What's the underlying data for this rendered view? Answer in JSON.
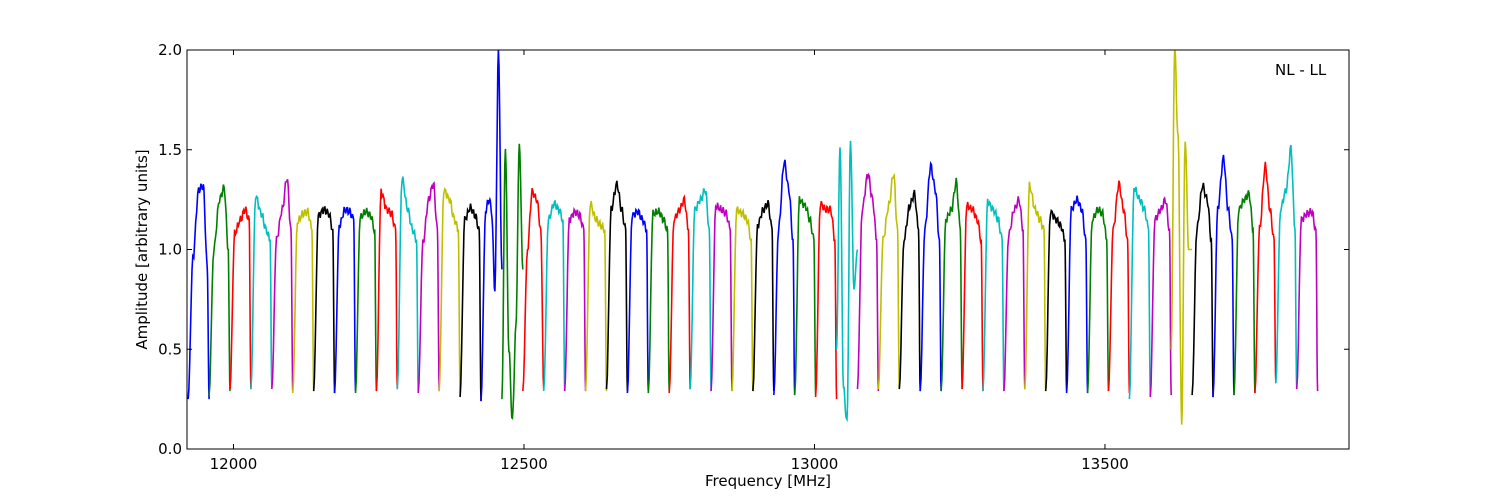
{
  "chart_data": {
    "type": "line",
    "title": "",
    "annotation": "NL - LL",
    "xlabel": "Frequency [MHz]",
    "ylabel": "Amplitude [arbitrary units]",
    "xlim": [
      11920,
      13920
    ],
    "ylim": [
      0.0,
      2.0
    ],
    "xticks": [
      12000,
      12500,
      13000,
      13500
    ],
    "xtick_labels": [
      "12000",
      "12500",
      "13000",
      "13500"
    ],
    "yticks": [
      0.0,
      0.5,
      1.0,
      1.5,
      2.0
    ],
    "ytick_labels": [
      "0.0",
      "0.5",
      "1.0",
      "1.5",
      "2.0"
    ],
    "grid": false,
    "legend": "none",
    "channel_width_mhz": 36,
    "color_cycle": [
      "#0000ff",
      "#008000",
      "#ff0000",
      "#00bfbf",
      "#bf00bf",
      "#bfbf00",
      "#000000"
    ],
    "series": [
      {
        "x": [
          11922,
          11930,
          11940,
          11948,
          11955,
          11958
        ],
        "y": [
          0.25,
          0.95,
          1.3,
          1.32,
          0.9,
          0.25
        ],
        "color": "#0000ff"
      },
      {
        "x": [
          11958,
          11966,
          11976,
          11984,
          11991,
          11994
        ],
        "y": [
          0.27,
          1.0,
          1.25,
          1.31,
          1.0,
          0.29
        ],
        "color": "#008000"
      },
      {
        "x": [
          11994,
          12002,
          12012,
          12020,
          12027,
          12030
        ],
        "y": [
          0.3,
          1.08,
          1.15,
          1.2,
          1.15,
          0.3
        ],
        "color": "#ff0000"
      },
      {
        "x": [
          12030,
          12038,
          12048,
          12056,
          12063,
          12066
        ],
        "y": [
          0.3,
          1.27,
          1.18,
          1.1,
          1.05,
          0.31
        ],
        "color": "#00bfbf"
      },
      {
        "x": [
          12066,
          12074,
          12084,
          12092,
          12099,
          12102
        ],
        "y": [
          0.3,
          1.05,
          1.2,
          1.36,
          1.1,
          0.29
        ],
        "color": "#bf00bf"
      },
      {
        "x": [
          12102,
          12110,
          12120,
          12128,
          12135,
          12138
        ],
        "y": [
          0.28,
          1.14,
          1.18,
          1.19,
          1.1,
          0.29
        ],
        "color": "#bfbf00"
      },
      {
        "x": [
          12138,
          12146,
          12156,
          12164,
          12171,
          12174
        ],
        "y": [
          0.29,
          1.17,
          1.2,
          1.18,
          1.1,
          0.28
        ],
        "color": "#000000"
      },
      {
        "x": [
          12174,
          12182,
          12192,
          12200,
          12207,
          12210
        ],
        "y": [
          0.28,
          1.12,
          1.2,
          1.19,
          1.15,
          0.29
        ],
        "color": "#0000ff"
      },
      {
        "x": [
          12210,
          12218,
          12228,
          12236,
          12243,
          12246
        ],
        "y": [
          0.28,
          1.16,
          1.19,
          1.17,
          1.1,
          0.29
        ],
        "color": "#008000"
      },
      {
        "x": [
          12246,
          12254,
          12264,
          12272,
          12279,
          12282
        ],
        "y": [
          0.29,
          1.29,
          1.2,
          1.18,
          1.1,
          0.3
        ],
        "color": "#ff0000"
      },
      {
        "x": [
          12282,
          12290,
          12300,
          12308,
          12315,
          12318
        ],
        "y": [
          0.3,
          1.36,
          1.2,
          1.1,
          1.05,
          0.29
        ],
        "color": "#00bfbf"
      },
      {
        "x": [
          12318,
          12326,
          12336,
          12344,
          12351,
          12354
        ],
        "y": [
          0.28,
          1.03,
          1.25,
          1.33,
          1.1,
          0.29
        ],
        "color": "#bf00bf"
      },
      {
        "x": [
          12354,
          12362,
          12372,
          12380,
          12387,
          12390
        ],
        "y": [
          0.29,
          1.3,
          1.25,
          1.15,
          1.1,
          0.27
        ],
        "color": "#bfbf00"
      },
      {
        "x": [
          12390,
          12398,
          12408,
          12416,
          12423,
          12426
        ],
        "y": [
          0.26,
          1.15,
          1.21,
          1.17,
          1.1,
          0.24
        ],
        "color": "#000000"
      },
      {
        "x": [
          12426,
          12434,
          12440,
          12444,
          12450,
          12456,
          12462
        ],
        "y": [
          0.24,
          1.2,
          1.25,
          1.2,
          0.8,
          2.0,
          0.9
        ],
        "color": "#0000ff"
      },
      {
        "x": [
          12462,
          12468,
          12474,
          12480,
          12486,
          12492,
          12498
        ],
        "y": [
          0.25,
          1.52,
          0.5,
          0.14,
          0.6,
          1.53,
          0.9
        ],
        "color": "#008000"
      },
      {
        "x": [
          12498,
          12506,
          12514,
          12522,
          12529,
          12534
        ],
        "y": [
          0.29,
          1.0,
          1.29,
          1.25,
          1.1,
          0.3
        ],
        "color": "#ff0000"
      },
      {
        "x": [
          12534,
          12542,
          12552,
          12560,
          12567,
          12570
        ],
        "y": [
          0.29,
          1.15,
          1.23,
          1.2,
          1.15,
          0.29
        ],
        "color": "#00bfbf"
      },
      {
        "x": [
          12570,
          12578,
          12588,
          12596,
          12603,
          12606
        ],
        "y": [
          0.29,
          1.15,
          1.19,
          1.17,
          1.1,
          0.29
        ],
        "color": "#bf00bf"
      },
      {
        "x": [
          12606,
          12614,
          12624,
          12632,
          12639,
          12642
        ],
        "y": [
          0.29,
          1.23,
          1.15,
          1.12,
          1.1,
          0.29
        ],
        "color": "#bfbf00"
      },
      {
        "x": [
          12642,
          12650,
          12660,
          12668,
          12675,
          12678
        ],
        "y": [
          0.3,
          1.2,
          1.33,
          1.2,
          1.1,
          0.29
        ],
        "color": "#000000"
      },
      {
        "x": [
          12678,
          12686,
          12696,
          12704,
          12711,
          12714
        ],
        "y": [
          0.28,
          1.17,
          1.19,
          1.15,
          1.1,
          0.29
        ],
        "color": "#0000ff"
      },
      {
        "x": [
          12714,
          12722,
          12732,
          12740,
          12747,
          12750
        ],
        "y": [
          0.28,
          1.18,
          1.19,
          1.15,
          1.1,
          0.29
        ],
        "color": "#008000"
      },
      {
        "x": [
          12750,
          12758,
          12768,
          12776,
          12783,
          12786
        ],
        "y": [
          0.28,
          1.15,
          1.2,
          1.25,
          1.1,
          0.3
        ],
        "color": "#ff0000"
      },
      {
        "x": [
          12786,
          12794,
          12804,
          12812,
          12819,
          12822
        ],
        "y": [
          0.3,
          1.2,
          1.25,
          1.3,
          1.1,
          0.29
        ],
        "color": "#00bfbf"
      },
      {
        "x": [
          12822,
          12830,
          12840,
          12848,
          12855,
          12858
        ],
        "y": [
          0.29,
          1.22,
          1.2,
          1.18,
          1.1,
          0.29
        ],
        "color": "#bf00bf"
      },
      {
        "x": [
          12858,
          12866,
          12876,
          12884,
          12891,
          12894
        ],
        "y": [
          0.29,
          1.2,
          1.18,
          1.15,
          1.05,
          0.29
        ],
        "color": "#bfbf00"
      },
      {
        "x": [
          12894,
          12902,
          12912,
          12920,
          12927,
          12930
        ],
        "y": [
          0.29,
          1.12,
          1.2,
          1.23,
          1.1,
          0.29
        ],
        "color": "#000000"
      },
      {
        "x": [
          12930,
          12938,
          12948,
          12956,
          12963,
          12966
        ],
        "y": [
          0.27,
          1.1,
          1.44,
          1.3,
          1.05,
          0.27
        ],
        "color": "#0000ff"
      },
      {
        "x": [
          12966,
          12974,
          12984,
          12992,
          12999,
          13002
        ],
        "y": [
          0.27,
          1.25,
          1.22,
          1.15,
          1.05,
          0.27
        ],
        "color": "#008000"
      },
      {
        "x": [
          13002,
          13010,
          13020,
          13028,
          13035,
          13038
        ],
        "y": [
          0.26,
          1.23,
          1.2,
          1.2,
          1.05,
          0.25
        ],
        "color": "#ff0000"
      },
      {
        "x": [
          13038,
          13044,
          13050,
          13056,
          13062,
          13068,
          13074
        ],
        "y": [
          0.5,
          1.53,
          0.3,
          0.13,
          1.55,
          0.8,
          1.0
        ],
        "color": "#00bfbf"
      },
      {
        "x": [
          13074,
          13082,
          13092,
          13100,
          13107,
          13110
        ],
        "y": [
          0.3,
          1.2,
          1.38,
          1.25,
          1.05,
          0.29
        ],
        "color": "#bf00bf"
      },
      {
        "x": [
          13110,
          13118,
          13128,
          13136,
          13143,
          13146
        ],
        "y": [
          0.3,
          1.05,
          1.22,
          1.38,
          1.1,
          0.3
        ],
        "color": "#bfbf00"
      },
      {
        "x": [
          13146,
          13154,
          13164,
          13172,
          13179,
          13182
        ],
        "y": [
          0.3,
          1.05,
          1.22,
          1.28,
          1.1,
          0.29
        ],
        "color": "#000000"
      },
      {
        "x": [
          13182,
          13190,
          13200,
          13208,
          13215,
          13218
        ],
        "y": [
          0.29,
          1.1,
          1.42,
          1.3,
          1.05,
          0.29
        ],
        "color": "#0000ff"
      },
      {
        "x": [
          13218,
          13226,
          13236,
          13244,
          13251,
          13254
        ],
        "y": [
          0.29,
          1.15,
          1.2,
          1.34,
          1.1,
          0.3
        ],
        "color": "#008000"
      },
      {
        "x": [
          13254,
          13262,
          13272,
          13280,
          13287,
          13290
        ],
        "y": [
          0.3,
          1.22,
          1.2,
          1.15,
          1.05,
          0.29
        ],
        "color": "#ff0000"
      },
      {
        "x": [
          13290,
          13298,
          13308,
          13316,
          13323,
          13326
        ],
        "y": [
          0.29,
          1.24,
          1.2,
          1.15,
          1.05,
          0.29
        ],
        "color": "#00bfbf"
      },
      {
        "x": [
          13326,
          13334,
          13344,
          13352,
          13359,
          13362
        ],
        "y": [
          0.29,
          1.07,
          1.2,
          1.25,
          1.1,
          0.3
        ],
        "color": "#bf00bf"
      },
      {
        "x": [
          13362,
          13370,
          13380,
          13388,
          13395,
          13398
        ],
        "y": [
          0.3,
          1.32,
          1.2,
          1.15,
          1.1,
          0.29
        ],
        "color": "#bfbf00"
      },
      {
        "x": [
          13398,
          13406,
          13416,
          13424,
          13431,
          13434
        ],
        "y": [
          0.29,
          1.19,
          1.15,
          1.12,
          1.05,
          0.29
        ],
        "color": "#000000"
      },
      {
        "x": [
          13434,
          13442,
          13452,
          13460,
          13467,
          13470
        ],
        "y": [
          0.28,
          1.2,
          1.25,
          1.2,
          1.05,
          0.28
        ],
        "color": "#0000ff"
      },
      {
        "x": [
          13470,
          13478,
          13488,
          13496,
          13503,
          13506
        ],
        "y": [
          0.28,
          1.15,
          1.2,
          1.18,
          1.05,
          0.29
        ],
        "color": "#008000"
      },
      {
        "x": [
          13506,
          13514,
          13524,
          13532,
          13539,
          13542
        ],
        "y": [
          0.29,
          1.1,
          1.33,
          1.2,
          1.05,
          0.28
        ],
        "color": "#ff0000"
      },
      {
        "x": [
          13542,
          13550,
          13560,
          13568,
          13575,
          13578
        ],
        "y": [
          0.25,
          1.31,
          1.25,
          1.2,
          1.1,
          0.26
        ],
        "color": "#00bfbf"
      },
      {
        "x": [
          13578,
          13586,
          13596,
          13604,
          13611,
          13614
        ],
        "y": [
          0.26,
          1.15,
          1.2,
          1.25,
          1.1,
          0.27
        ],
        "color": "#bf00bf"
      },
      {
        "x": [
          13614,
          13620,
          13626,
          13632,
          13638,
          13644,
          13650
        ],
        "y": [
          0.5,
          2.0,
          1.55,
          0.12,
          1.56,
          1.0,
          1.0
        ],
        "color": "#bfbf00"
      },
      {
        "x": [
          13650,
          13658,
          13668,
          13676,
          13683,
          13686
        ],
        "y": [
          0.27,
          1.1,
          1.32,
          1.25,
          1.05,
          0.26
        ],
        "color": "#000000"
      },
      {
        "x": [
          13686,
          13694,
          13704,
          13712,
          13719,
          13722
        ],
        "y": [
          0.26,
          1.2,
          1.46,
          1.2,
          1.05,
          0.27
        ],
        "color": "#0000ff"
      }
    ],
    "series_note": "",
    "tail_series": [
      {
        "x": [
          13722,
          13730,
          13740,
          13748,
          13755,
          13758
        ],
        "y": [
          0.27,
          1.2,
          1.25,
          1.28,
          1.1,
          0.28
        ],
        "color": "#008000"
      },
      {
        "x": [
          13758,
          13766,
          13776,
          13784,
          13791,
          13794
        ],
        "y": [
          0.28,
          1.1,
          1.42,
          1.2,
          1.05,
          0.33
        ],
        "color": "#ff0000"
      },
      {
        "x": [
          13794,
          13802,
          13812,
          13820,
          13827,
          13830
        ],
        "y": [
          0.33,
          1.2,
          1.3,
          1.51,
          1.1,
          0.3
        ],
        "color": "#00bfbf"
      },
      {
        "x": [
          13830,
          13838,
          13848,
          13856,
          13863,
          13866
        ],
        "y": [
          0.3,
          1.15,
          1.18,
          1.19,
          1.1,
          0.29
        ],
        "color": "#bf00bf"
      }
    ]
  }
}
